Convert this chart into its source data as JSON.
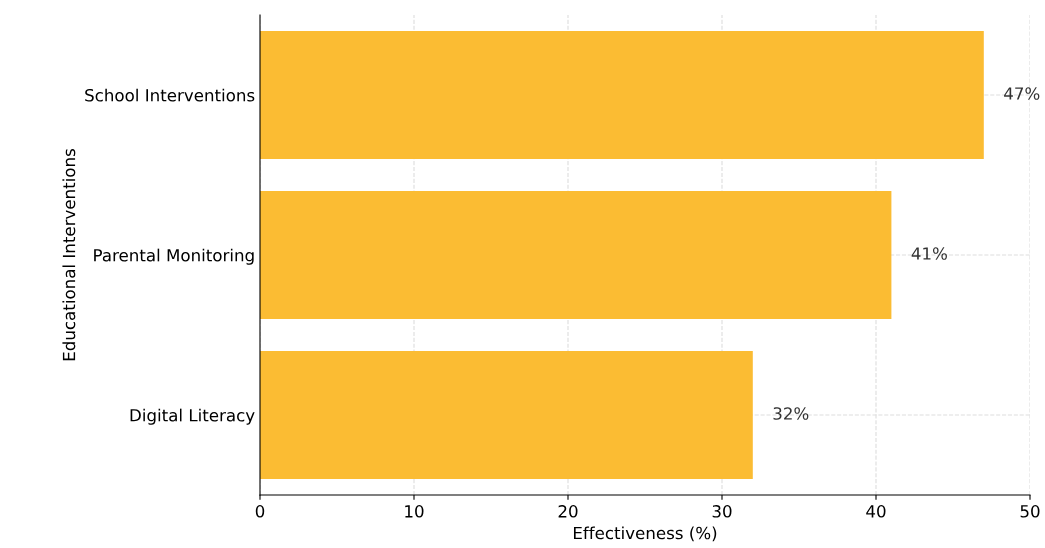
{
  "chart_data": {
    "type": "bar",
    "orientation": "horizontal",
    "xlabel": "Effectiveness (%)",
    "ylabel": "Educational Interventions",
    "categories": [
      "School Interventions",
      "Parental Monitoring",
      "Digital Literacy"
    ],
    "values": [
      47,
      41,
      32
    ],
    "color": "#fbbc33",
    "value_labels": [
      "47%",
      "41%",
      "32%"
    ],
    "xlim": [
      0,
      50
    ],
    "xticks": [
      0,
      10,
      20,
      30,
      40,
      50
    ],
    "grid": true
  }
}
